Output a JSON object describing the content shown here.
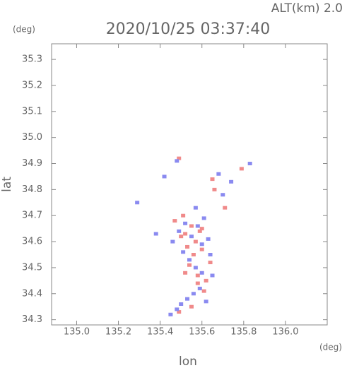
{
  "chart_data": {
    "type": "scatter",
    "title": "2020/10/25 03:37:40",
    "subtitle": "ALT(km) 2.0",
    "x_label": "lon",
    "y_label": "lat",
    "x_unit": "(deg)",
    "y_unit": "(deg)",
    "xlim": [
      134.88,
      136.2
    ],
    "ylim": [
      34.28,
      35.36
    ],
    "xticks": [
      {
        "value": 135,
        "label": "135.0"
      },
      135.2,
      135.4,
      135.6,
      135.8,
      {
        "value": 136,
        "label": "136.0"
      }
    ],
    "yticks": [
      34.3,
      34.4,
      34.5,
      34.6,
      34.7,
      34.8,
      34.9,
      {
        "value": 35,
        "label": "35.0"
      },
      35.1,
      35.2,
      35.3
    ],
    "series": [
      {
        "color": "#f08a8a",
        "x": [
          135.49,
          135.55,
          135.52,
          135.58,
          135.62,
          135.5,
          135.57,
          135.53,
          135.6,
          135.56,
          135.64,
          135.47,
          135.51,
          135.59,
          135.54,
          135.61,
          135.66,
          135.71,
          135.79,
          135.65,
          135.49,
          135.55,
          135.6,
          135.58,
          135.52
        ],
        "values": [
          34.33,
          34.35,
          34.48,
          34.47,
          34.45,
          34.62,
          34.6,
          34.58,
          34.65,
          34.55,
          34.52,
          34.68,
          34.7,
          34.64,
          34.51,
          34.41,
          34.8,
          34.73,
          34.88,
          34.84,
          34.92,
          34.66,
          34.57,
          34.44,
          34.63
        ]
      },
      {
        "color": "#8a8af0",
        "x": [
          135.45,
          135.48,
          135.5,
          135.53,
          135.56,
          135.59,
          135.62,
          135.65,
          135.57,
          135.54,
          135.51,
          135.6,
          135.63,
          135.55,
          135.58,
          135.61,
          135.52,
          135.49,
          135.46,
          135.68,
          135.74,
          135.83,
          135.7,
          135.42,
          135.38,
          135.29,
          135.48,
          135.57,
          135.64,
          135.6
        ],
        "values": [
          34.32,
          34.34,
          34.36,
          34.38,
          34.4,
          34.42,
          34.37,
          34.47,
          34.5,
          34.53,
          34.56,
          34.59,
          34.61,
          34.62,
          34.66,
          34.69,
          34.67,
          34.64,
          34.6,
          34.86,
          34.83,
          34.9,
          34.78,
          34.85,
          34.63,
          34.75,
          34.91,
          34.73,
          34.55,
          34.48
        ]
      }
    ]
  }
}
